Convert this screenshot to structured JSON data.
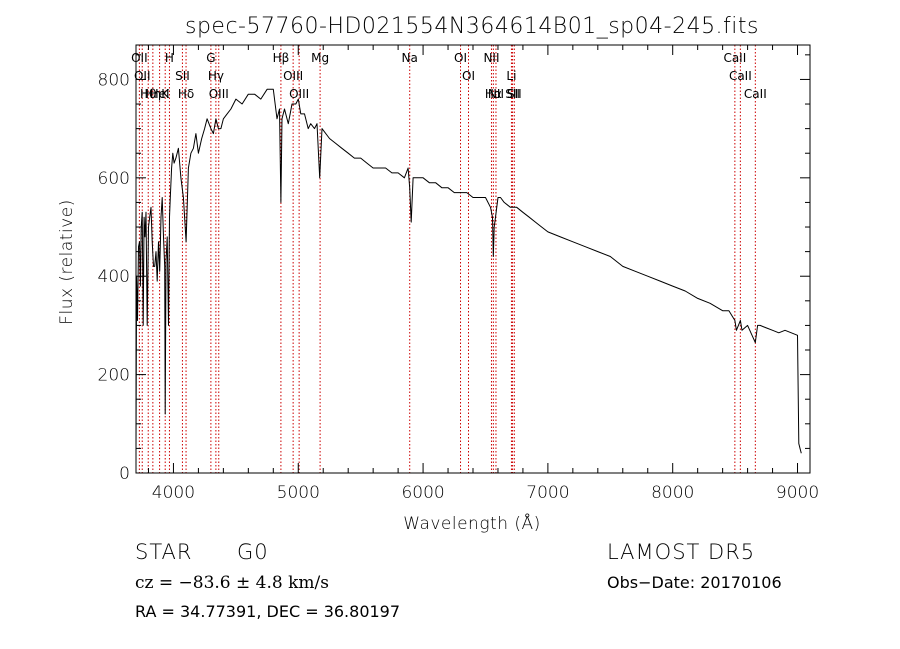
{
  "chart_data": {
    "type": "line",
    "title": "spec-57760-HD021554N364614B01_sp04-245.fits",
    "xlabel": "Wavelength (Å)",
    "ylabel": "Flux (relative)",
    "xlim": [
      3700,
      9100
    ],
    "ylim": [
      0,
      870
    ],
    "x_ticks": [
      4000,
      5000,
      6000,
      7000,
      8000,
      9000
    ],
    "y_ticks": [
      0,
      200,
      400,
      600,
      800
    ],
    "grid": false,
    "series": [
      {
        "x": [
          3700,
          3705,
          3712,
          3720,
          3728,
          3735,
          3742,
          3750,
          3758,
          3765,
          3772,
          3780,
          3790,
          3800,
          3810,
          3820,
          3830,
          3840,
          3850,
          3860,
          3870,
          3880,
          3890,
          3900,
          3910,
          3920,
          3930,
          3934,
          3940,
          3950,
          3960,
          3968,
          3975,
          3985,
          3995,
          4005,
          4020,
          4040,
          4060,
          4080,
          4101,
          4120,
          4140,
          4160,
          4180,
          4200,
          4226,
          4250,
          4270,
          4300,
          4320,
          4340,
          4360,
          4380,
          4400,
          4430,
          4460,
          4500,
          4550,
          4600,
          4650,
          4700,
          4750,
          4800,
          4830,
          4850,
          4861,
          4870,
          4890,
          4920,
          4950,
          4980,
          5000,
          5020,
          5050,
          5080,
          5100,
          5130,
          5150,
          5172,
          5190,
          5250,
          5300,
          5350,
          5400,
          5450,
          5500,
          5550,
          5600,
          5650,
          5700,
          5750,
          5800,
          5850,
          5880,
          5893,
          5905,
          5920,
          5950,
          6000,
          6050,
          6100,
          6150,
          6200,
          6250,
          6300,
          6350,
          6400,
          6450,
          6500,
          6540,
          6556,
          6563,
          6570,
          6580,
          6600,
          6620,
          6650,
          6700,
          6750,
          6800,
          6850,
          6900,
          6950,
          7000,
          7100,
          7200,
          7300,
          7400,
          7500,
          7600,
          7700,
          7800,
          7900,
          8000,
          8100,
          8200,
          8300,
          8400,
          8450,
          8498,
          8510,
          8542,
          8555,
          8600,
          8662,
          8680,
          8700,
          8750,
          8800,
          8850,
          8900,
          8950,
          9000,
          9010,
          9020,
          9030
        ],
        "y": [
          50,
          400,
          310,
          460,
          470,
          380,
          500,
          530,
          300,
          520,
          480,
          530,
          300,
          500,
          520,
          540,
          470,
          420,
          420,
          450,
          390,
          470,
          410,
          520,
          560,
          480,
          420,
          120,
          430,
          480,
          300,
          520,
          560,
          620,
          650,
          630,
          640,
          660,
          600,
          560,
          470,
          620,
          650,
          660,
          690,
          650,
          680,
          700,
          720,
          700,
          690,
          720,
          700,
          700,
          720,
          730,
          740,
          760,
          750,
          770,
          770,
          760,
          780,
          780,
          720,
          740,
          550,
          720,
          740,
          710,
          750,
          750,
          760,
          730,
          730,
          700,
          710,
          700,
          710,
          600,
          700,
          680,
          670,
          660,
          650,
          640,
          640,
          630,
          620,
          620,
          620,
          610,
          610,
          600,
          620,
          580,
          510,
          600,
          600,
          600,
          590,
          590,
          580,
          580,
          570,
          570,
          570,
          560,
          560,
          560,
          540,
          520,
          440,
          500,
          520,
          560,
          560,
          550,
          540,
          540,
          530,
          520,
          510,
          500,
          490,
          480,
          470,
          460,
          450,
          440,
          420,
          410,
          400,
          390,
          380,
          370,
          355,
          345,
          330,
          330,
          310,
          290,
          310,
          290,
          300,
          265,
          300,
          300,
          295,
          290,
          285,
          290,
          285,
          280,
          60,
          50,
          40
        ]
      }
    ],
    "lines": [
      {
        "w": 3727,
        "label": "OII"
      },
      {
        "w": 3750,
        "label": "OII"
      },
      {
        "w": 3798,
        "label": "Hθ"
      },
      {
        "w": 3835,
        "label": "Hη"
      },
      {
        "w": 3889,
        "label": "HeI"
      },
      {
        "w": 3934,
        "label": "K"
      },
      {
        "w": 3968,
        "label": "H"
      },
      {
        "w": 4072,
        "label": "SII"
      },
      {
        "w": 4101,
        "label": "Hδ"
      },
      {
        "w": 4300,
        "label": "G"
      },
      {
        "w": 4340,
        "label": "Hγ"
      },
      {
        "w": 4363,
        "label": "OIII"
      },
      {
        "w": 4861,
        "label": "Hβ"
      },
      {
        "w": 4959,
        "label": "OIII"
      },
      {
        "w": 5007,
        "label": "OIII"
      },
      {
        "w": 5175,
        "label": "Mg"
      },
      {
        "w": 5893,
        "label": "Na"
      },
      {
        "w": 6300,
        "label": "OI"
      },
      {
        "w": 6364,
        "label": "OI"
      },
      {
        "w": 6548,
        "label": "NII"
      },
      {
        "w": 6563,
        "label": "Hα"
      },
      {
        "w": 6584,
        "label": "NII"
      },
      {
        "w": 6708,
        "label": "Li"
      },
      {
        "w": 6717,
        "label": "SII"
      },
      {
        "w": 6731,
        "label": "SII"
      },
      {
        "w": 8498,
        "label": "CaII"
      },
      {
        "w": 8542,
        "label": "CaII"
      },
      {
        "w": 8662,
        "label": "CaII"
      }
    ],
    "colors": {
      "spectrum": "#000000",
      "lines": "#cc0000"
    }
  },
  "info": {
    "object_class": "STAR",
    "subclass": "G0",
    "survey": "LAMOST DR5",
    "cz": "cz = −83.6 ± 4.8 km/s",
    "obs_date": "Obs−Date: 20170106",
    "coords": "RA =  34.77391, DEC =  36.80197"
  }
}
